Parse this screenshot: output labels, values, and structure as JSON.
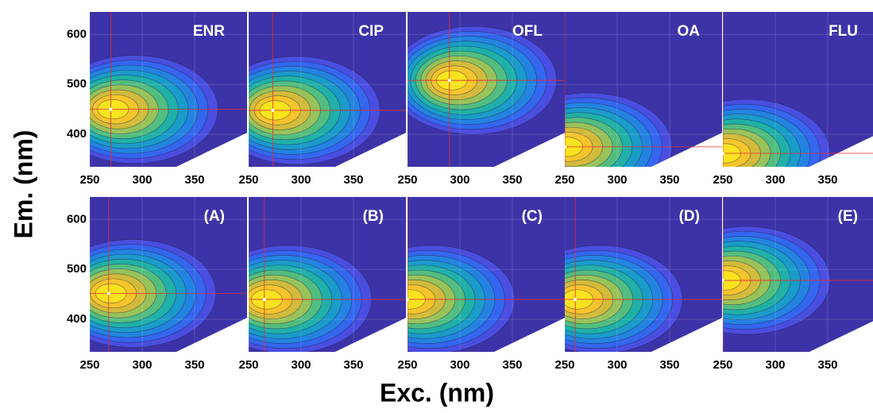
{
  "chart_data": [
    {
      "type": "contour",
      "title": "ENR",
      "xlim": [
        250,
        400
      ],
      "ylim": [
        335,
        645
      ],
      "xticks": [
        250,
        300,
        350
      ],
      "yticks": [
        400,
        500,
        600
      ],
      "peak": {
        "exc": 270,
        "em": 450
      }
    },
    {
      "type": "contour",
      "title": "CIP",
      "xlim": [
        250,
        400
      ],
      "ylim": [
        335,
        645
      ],
      "xticks": [
        250,
        300,
        350
      ],
      "yticks": [
        400,
        500,
        600
      ],
      "peak": {
        "exc": 273,
        "em": 448
      }
    },
    {
      "type": "contour",
      "title": "OFL",
      "xlim": [
        250,
        400
      ],
      "ylim": [
        335,
        645
      ],
      "xticks": [
        250,
        300,
        350
      ],
      "yticks": [
        400,
        500,
        600
      ],
      "peak": {
        "exc": 290,
        "em": 508
      }
    },
    {
      "type": "contour",
      "title": "OA",
      "xlim": [
        250,
        400
      ],
      "ylim": [
        335,
        645
      ],
      "xticks": [
        250,
        300,
        350
      ],
      "yticks": [
        400,
        500,
        600
      ],
      "peak": {
        "exc": 250,
        "em": 375
      }
    },
    {
      "type": "contour",
      "title": "FLU",
      "xlim": [
        250,
        400
      ],
      "ylim": [
        335,
        645
      ],
      "xticks": [
        250,
        300,
        350
      ],
      "yticks": [
        400,
        500,
        600
      ],
      "peak": {
        "exc": 250,
        "em": 362
      }
    },
    {
      "type": "contour",
      "title": "(A)",
      "xlim": [
        250,
        400
      ],
      "ylim": [
        335,
        645
      ],
      "xticks": [
        250,
        300,
        350
      ],
      "yticks": [
        400,
        500,
        600
      ],
      "peak": {
        "exc": 268,
        "em": 452
      }
    },
    {
      "type": "contour",
      "title": "(B)",
      "xlim": [
        250,
        400
      ],
      "ylim": [
        335,
        645
      ],
      "xticks": [
        250,
        300,
        350
      ],
      "yticks": [
        400,
        500,
        600
      ],
      "peak": {
        "exc": 265,
        "em": 440
      }
    },
    {
      "type": "contour",
      "title": "(C)",
      "xlim": [
        250,
        400
      ],
      "ylim": [
        335,
        645
      ],
      "xticks": [
        250,
        300,
        350
      ],
      "yticks": [
        400,
        500,
        600
      ],
      "peak": {
        "exc": 250,
        "em": 440
      }
    },
    {
      "type": "contour",
      "title": "(D)",
      "xlim": [
        250,
        400
      ],
      "ylim": [
        335,
        645
      ],
      "xticks": [
        250,
        300,
        350
      ],
      "yticks": [
        400,
        500,
        600
      ],
      "peak": {
        "exc": 260,
        "em": 440
      }
    },
    {
      "type": "contour",
      "title": "(E)",
      "xlim": [
        250,
        400
      ],
      "ylim": [
        335,
        645
      ],
      "xticks": [
        250,
        300,
        350
      ],
      "yticks": [
        400,
        500,
        600
      ],
      "peak": {
        "exc": 250,
        "em": 478
      }
    }
  ],
  "y_label": "Em. (nm)",
  "x_label": "Exc. (nm)"
}
